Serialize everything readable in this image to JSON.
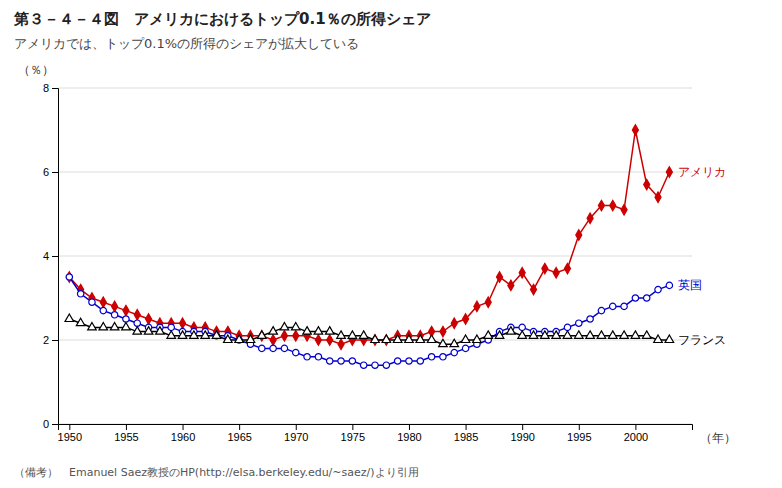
{
  "chart_data": {
    "type": "line",
    "title": "第３－４－４図　アメリカにおけるトップ0.1％の所得シェア",
    "subtitle": "アメリカでは、トップ0.1%の所得のシェアが拡大している",
    "ylabel": "（％）",
    "xlabel": "（年）",
    "footnote": "（備考）　Emanuel Saez教授のHP(http://elsa.berkeley.edu/~saez/)より引用",
    "x": [
      1950,
      1951,
      1952,
      1953,
      1954,
      1955,
      1956,
      1957,
      1958,
      1959,
      1960,
      1961,
      1962,
      1963,
      1964,
      1965,
      1966,
      1967,
      1968,
      1969,
      1970,
      1971,
      1972,
      1973,
      1974,
      1975,
      1976,
      1977,
      1978,
      1979,
      1980,
      1981,
      1982,
      1983,
      1984,
      1985,
      1986,
      1987,
      1988,
      1989,
      1990,
      1991,
      1992,
      1993,
      1994,
      1995,
      1996,
      1997,
      1998,
      1999,
      2000,
      2001,
      2002,
      2003
    ],
    "series": [
      {
        "name": "アメリカ",
        "color": "#cc0000",
        "marker": "diamond",
        "values": [
          3.5,
          3.2,
          3.0,
          2.9,
          2.8,
          2.7,
          2.6,
          2.5,
          2.4,
          2.4,
          2.4,
          2.3,
          2.3,
          2.2,
          2.2,
          2.1,
          2.1,
          2.1,
          2.0,
          2.1,
          2.1,
          2.1,
          2.0,
          2.0,
          1.9,
          2.0,
          2.0,
          2.0,
          2.0,
          2.1,
          2.1,
          2.1,
          2.2,
          2.2,
          2.4,
          2.5,
          2.8,
          2.9,
          3.5,
          3.3,
          3.6,
          3.2,
          3.7,
          3.6,
          3.7,
          4.5,
          4.9,
          5.2,
          5.2,
          5.1,
          7.0,
          5.7,
          5.4,
          6.0
        ]
      },
      {
        "name": "英国",
        "color": "#0000cc",
        "marker": "circle-open",
        "values": [
          3.5,
          3.1,
          2.9,
          2.7,
          2.6,
          2.5,
          2.4,
          2.3,
          2.3,
          2.3,
          2.2,
          2.2,
          2.2,
          2.1,
          2.1,
          2.0,
          1.9,
          1.8,
          1.8,
          1.8,
          1.7,
          1.6,
          1.6,
          1.5,
          1.5,
          1.5,
          1.4,
          1.4,
          1.4,
          1.5,
          1.5,
          1.5,
          1.6,
          1.6,
          1.7,
          1.8,
          1.9,
          2.0,
          2.2,
          2.3,
          2.3,
          2.2,
          2.2,
          2.2,
          2.3,
          2.4,
          2.5,
          2.7,
          2.8,
          2.8,
          3.0,
          3.0,
          3.2,
          3.3
        ]
      },
      {
        "name": "フランス",
        "color": "#000000",
        "marker": "triangle-open",
        "values": [
          2.5,
          2.4,
          2.3,
          2.3,
          2.3,
          2.3,
          2.2,
          2.2,
          2.2,
          2.1,
          2.1,
          2.1,
          2.1,
          2.1,
          2.0,
          2.0,
          2.0,
          2.1,
          2.2,
          2.3,
          2.3,
          2.2,
          2.2,
          2.2,
          2.1,
          2.1,
          2.1,
          2.0,
          2.0,
          2.0,
          2.0,
          2.0,
          2.0,
          1.9,
          1.9,
          2.0,
          2.0,
          2.1,
          2.1,
          2.2,
          2.1,
          2.1,
          2.1,
          2.1,
          2.1,
          2.1,
          2.1,
          2.1,
          2.1,
          2.1,
          2.1,
          2.1,
          2.0,
          2.0
        ]
      }
    ],
    "xlim": [
      1949,
      2005
    ],
    "xticks": [
      1950,
      1955,
      1960,
      1965,
      1970,
      1975,
      1980,
      1985,
      1990,
      1995,
      2000
    ],
    "ylim": [
      0,
      8
    ],
    "yticks": [
      0,
      2,
      4,
      6,
      8
    ],
    "grid": true
  }
}
